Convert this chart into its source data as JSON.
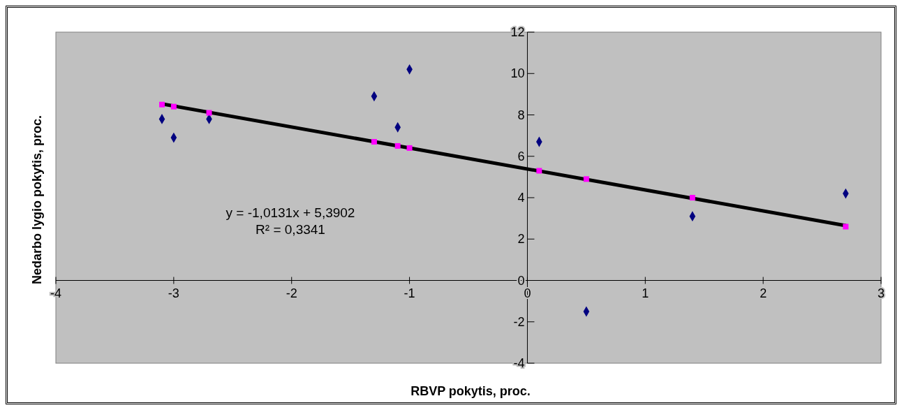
{
  "chart_data": {
    "type": "scatter",
    "xlabel": "RBVP pokytis, proc.",
    "ylabel": "Nedarbo lygio pokytis, proc.",
    "xlim": [
      -4,
      3
    ],
    "xticks": [
      -4,
      -3,
      -2,
      -1,
      0,
      1,
      2,
      3
    ],
    "ylim": [
      -4,
      12
    ],
    "yticks": [
      -4,
      -2,
      0,
      2,
      4,
      6,
      8,
      10,
      12
    ],
    "marker": "diamond",
    "annotations": [
      "y = -1,0131x + 5,3902",
      "R² = 0,3341"
    ],
    "series": [
      {
        "color": "#000080",
        "x": [
          -3.1,
          -3.0,
          -2.7,
          -1.3,
          -1.1,
          -1.0,
          0.1,
          0.5,
          1.4,
          2.7
        ],
        "values": [
          7.8,
          6.9,
          7.8,
          8.9,
          7.4,
          10.2,
          6.7,
          -1.5,
          3.1,
          4.2
        ]
      },
      {
        "type": "scatter",
        "marker": "square",
        "color": "#ff00ff",
        "x": [
          -3.1,
          -3.0,
          -2.7,
          -1.3,
          -1.1,
          -1.0,
          0.1,
          0.5,
          1.4,
          2.7
        ],
        "values": [
          8.5,
          8.4,
          8.1,
          6.7,
          6.5,
          6.4,
          5.3,
          4.9,
          4.0,
          2.6
        ]
      },
      {
        "type": "line",
        "marker": "none",
        "color": "#000000",
        "x": [
          -3.1,
          2.7
        ],
        "values": [
          8.53,
          2.65
        ]
      }
    ]
  }
}
